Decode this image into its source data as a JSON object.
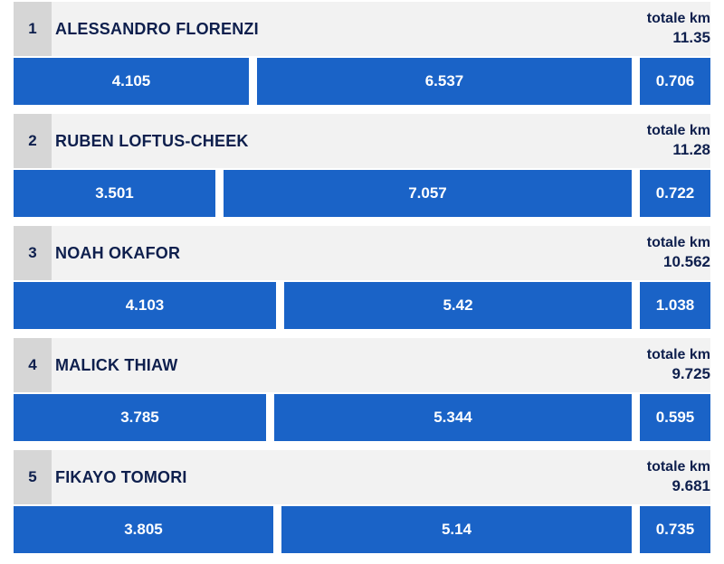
{
  "colors": {
    "bar": "#1a63c7",
    "header_bg": "#f2f2f2",
    "rank_bg": "#d6d6d6",
    "text_dark": "#0e1f4d",
    "bar_text": "#ffffff"
  },
  "total_label": "totale km",
  "chart_data": {
    "type": "bar",
    "stacked": true,
    "orientation": "horizontal",
    "players": [
      {
        "rank": "1",
        "name": "ALESSANDRO FLORENZI",
        "total": "11.35",
        "segments": [
          "4.105",
          "6.537",
          "0.706"
        ]
      },
      {
        "rank": "2",
        "name": "RUBEN LOFTUS-CHEEK",
        "total": "11.28",
        "segments": [
          "3.501",
          "7.057",
          "0.722"
        ]
      },
      {
        "rank": "3",
        "name": "NOAH OKAFOR",
        "total": "10.562",
        "segments": [
          "4.103",
          "5.42",
          "1.038"
        ]
      },
      {
        "rank": "4",
        "name": "MALICK THIAW",
        "total": "9.725",
        "segments": [
          "3.785",
          "5.344",
          "0.595"
        ]
      },
      {
        "rank": "5",
        "name": "FIKAYO TOMORI",
        "total": "9.681",
        "segments": [
          "3.805",
          "5.14",
          "0.735"
        ]
      }
    ]
  }
}
